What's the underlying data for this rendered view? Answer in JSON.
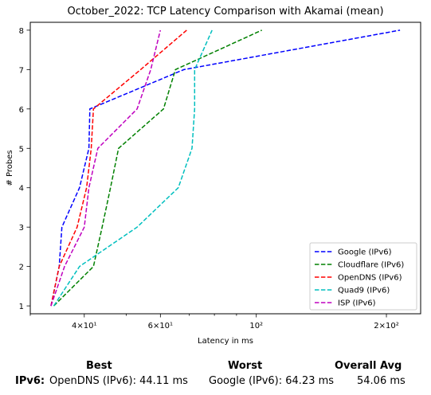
{
  "chart_data": {
    "type": "line",
    "title": "October_2022: TCP Latency Comparison with Akamai (mean)",
    "xlabel": "Latency in ms",
    "ylabel": "# Probes",
    "xscale": "log",
    "xlim": [
      30,
      240
    ],
    "ylim": [
      0.8,
      8.2
    ],
    "x_ticks": [
      {
        "value": 40,
        "label": "4×10¹"
      },
      {
        "value": 60,
        "label": "6×10¹"
      },
      {
        "value": 100,
        "label": "10²"
      },
      {
        "value": 200,
        "label": "2×10²"
      }
    ],
    "y_ticks": [
      1,
      2,
      3,
      4,
      5,
      6,
      7,
      8
    ],
    "grid": false,
    "legend_position": "lower right",
    "series": [
      {
        "name": "Google (IPv6)",
        "color": "#0000ff",
        "points": [
          [
            33.5,
            1
          ],
          [
            35,
            2
          ],
          [
            35.5,
            3
          ],
          [
            39,
            4
          ],
          [
            41,
            5
          ],
          [
            41.2,
            6
          ],
          [
            68,
            7
          ],
          [
            215,
            8
          ]
        ]
      },
      {
        "name": "Cloudflare (IPv6)",
        "color": "#008000",
        "points": [
          [
            34,
            1
          ],
          [
            42,
            2
          ],
          [
            44,
            3
          ],
          [
            46,
            4
          ],
          [
            48,
            5
          ],
          [
            61,
            6
          ],
          [
            65,
            7
          ],
          [
            103,
            8
          ]
        ]
      },
      {
        "name": "OpenDNS (IPv6)",
        "color": "#ff0000",
        "points": [
          [
            33.5,
            1
          ],
          [
            35,
            2
          ],
          [
            38.5,
            3
          ],
          [
            40.5,
            4
          ],
          [
            41.5,
            5
          ],
          [
            42,
            6
          ],
          [
            54,
            7
          ],
          [
            69,
            8
          ]
        ]
      },
      {
        "name": "Quad9 (IPv6)",
        "color": "#00bfbf",
        "points": [
          [
            34,
            1
          ],
          [
            39,
            2
          ],
          [
            53,
            3
          ],
          [
            66,
            4
          ],
          [
            71,
            5
          ],
          [
            72,
            6
          ],
          [
            72,
            7
          ],
          [
            79,
            8
          ]
        ]
      },
      {
        "name": "ISP (IPv6)",
        "color": "#bf00bf",
        "points": [
          [
            33.5,
            1
          ],
          [
            36,
            2
          ],
          [
            40,
            3
          ],
          [
            41,
            4
          ],
          [
            43,
            5
          ],
          [
            53,
            6
          ],
          [
            57,
            7
          ],
          [
            60,
            8
          ]
        ]
      }
    ]
  },
  "summary": {
    "headers": {
      "best": "Best",
      "worst": "Worst",
      "overall": "Overall Avg"
    },
    "row_label": "IPv6:",
    "best": "OpenDNS (IPv6): 44.11 ms",
    "worst": "Google (IPv6): 64.23 ms",
    "overall": "54.06 ms"
  }
}
